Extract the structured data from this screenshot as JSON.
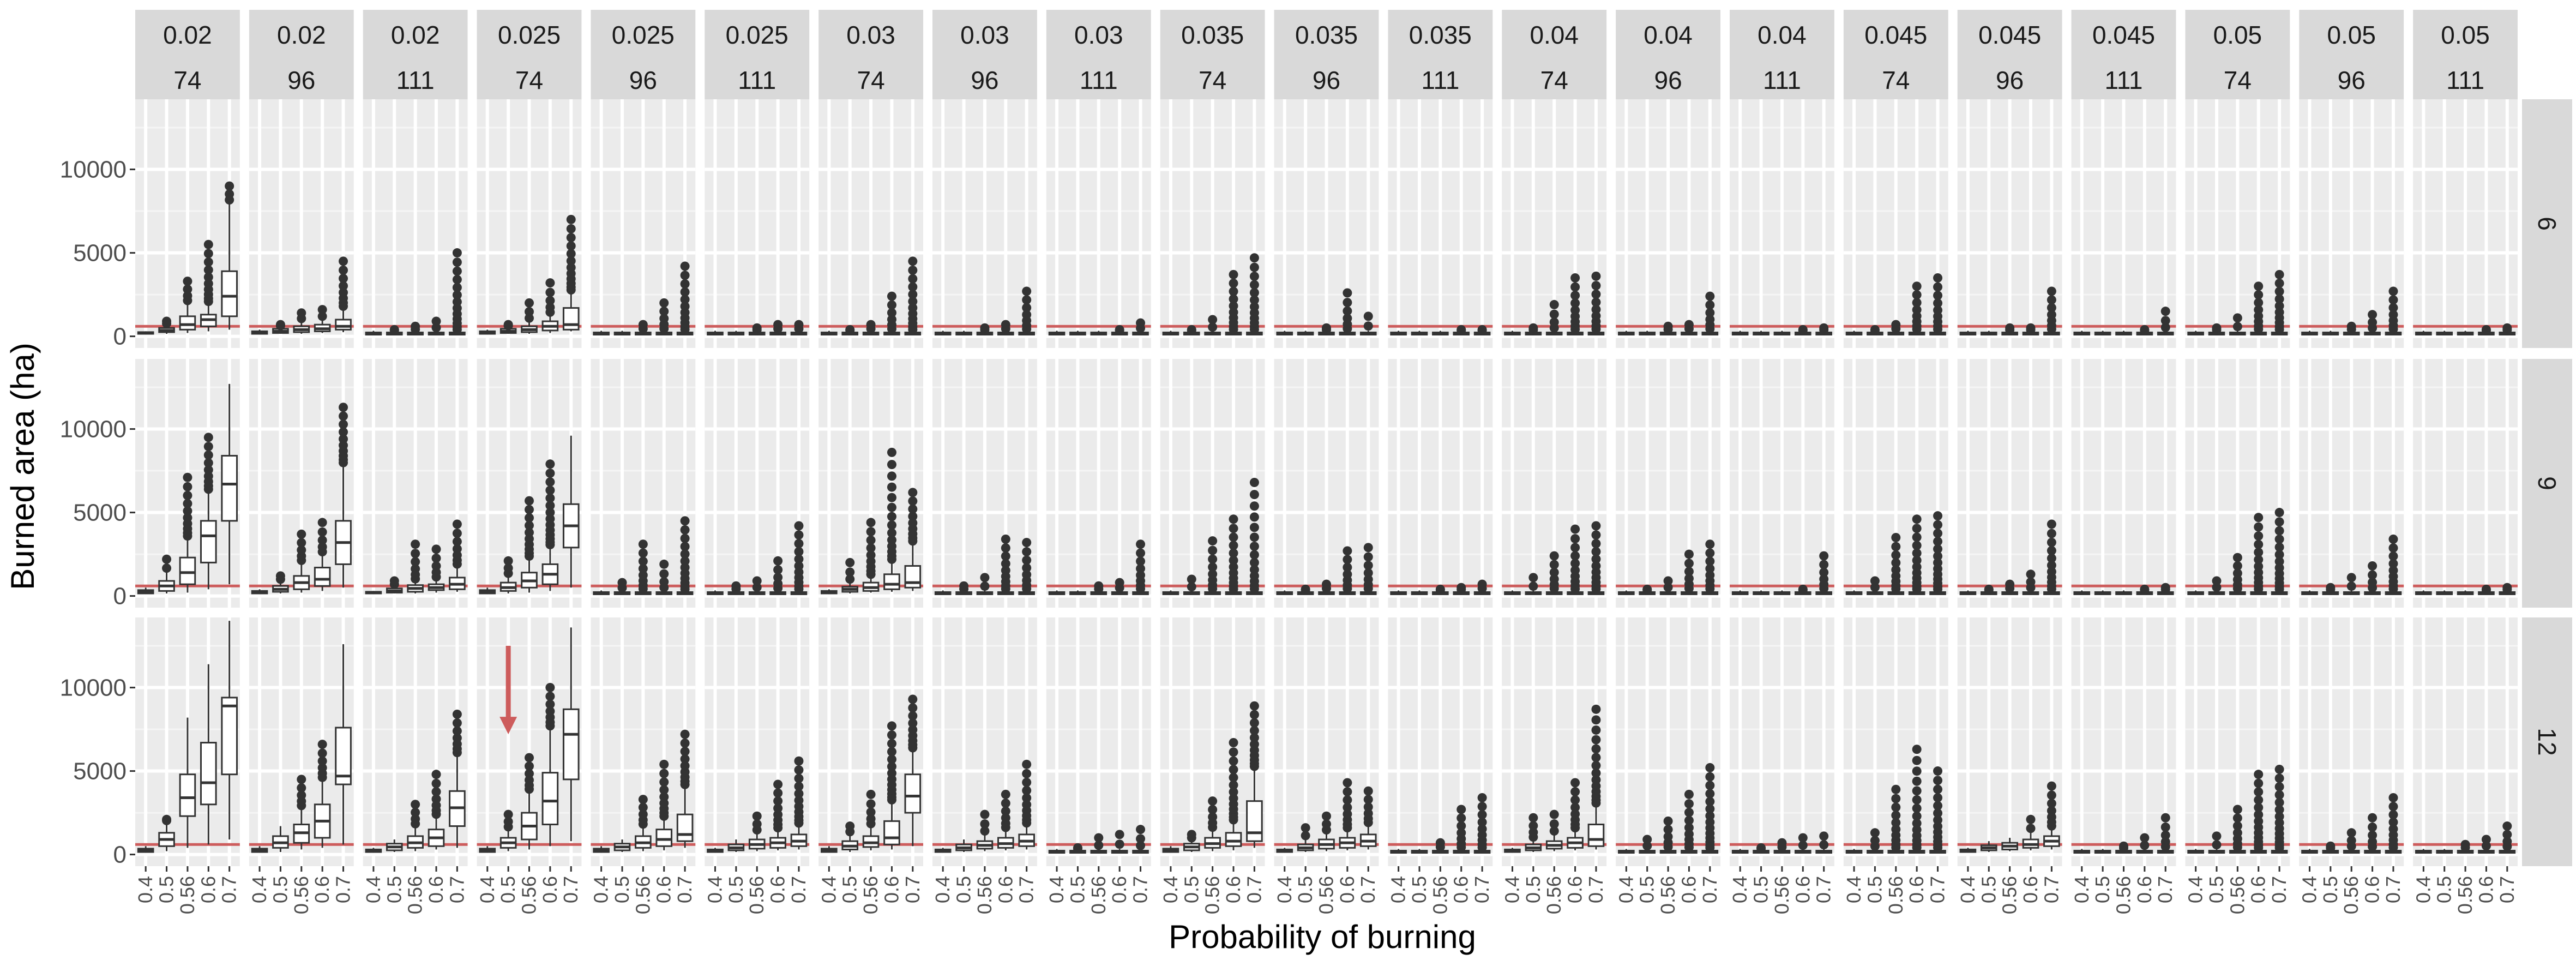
{
  "chart_data": {
    "type": "boxplot",
    "title": "",
    "xlabel": "Probability of burning",
    "ylabel": "Burned area (ha)",
    "x_categories": [
      "0.4",
      "0.5",
      "0.56",
      "0.6",
      "0.7"
    ],
    "y_ticks": [
      0,
      5000,
      10000
    ],
    "y_tick_labels": [
      "0",
      "5000",
      "10000"
    ],
    "ylim": [
      -700,
      14200
    ],
    "reference_line": 600,
    "reference_color": "#cd5c5c",
    "facet_cols": [
      {
        "top": "0.02",
        "bottom": "74"
      },
      {
        "top": "0.02",
        "bottom": "96"
      },
      {
        "top": "0.02",
        "bottom": "111"
      },
      {
        "top": "0.025",
        "bottom": "74"
      },
      {
        "top": "0.025",
        "bottom": "96"
      },
      {
        "top": "0.025",
        "bottom": "111"
      },
      {
        "top": "0.03",
        "bottom": "74"
      },
      {
        "top": "0.03",
        "bottom": "96"
      },
      {
        "top": "0.03",
        "bottom": "111"
      },
      {
        "top": "0.035",
        "bottom": "74"
      },
      {
        "top": "0.035",
        "bottom": "96"
      },
      {
        "top": "0.035",
        "bottom": "111"
      },
      {
        "top": "0.04",
        "bottom": "74"
      },
      {
        "top": "0.04",
        "bottom": "96"
      },
      {
        "top": "0.04",
        "bottom": "111"
      },
      {
        "top": "0.045",
        "bottom": "74"
      },
      {
        "top": "0.045",
        "bottom": "96"
      },
      {
        "top": "0.045",
        "bottom": "111"
      },
      {
        "top": "0.05",
        "bottom": "74"
      },
      {
        "top": "0.05",
        "bottom": "96"
      },
      {
        "top": "0.05",
        "bottom": "111"
      }
    ],
    "facet_rows": [
      "6",
      "9",
      "12"
    ],
    "max_values": [
      [
        [
          300,
          900,
          3300,
          5500,
          9000
        ],
        [
          400,
          700,
          1400,
          1600,
          4500
        ],
        [
          200,
          400,
          600,
          900,
          5000
        ],
        [
          300,
          700,
          2000,
          3200,
          7000
        ],
        [
          200,
          300,
          700,
          2000,
          4200
        ],
        [
          200,
          300,
          500,
          700,
          700
        ],
        [
          300,
          400,
          700,
          2400,
          4500
        ],
        [
          200,
          300,
          500,
          700,
          2700
        ],
        [
          100,
          200,
          300,
          400,
          800
        ],
        [
          200,
          400,
          1000,
          3700,
          4700
        ],
        [
          200,
          300,
          500,
          2600,
          1200
        ],
        [
          100,
          200,
          300,
          400,
          400
        ],
        [
          200,
          500,
          1900,
          3500,
          3600
        ],
        [
          200,
          300,
          600,
          700,
          2400
        ],
        [
          100,
          200,
          300,
          400,
          500
        ],
        [
          200,
          400,
          700,
          3000,
          3500
        ],
        [
          200,
          300,
          500,
          500,
          2700
        ],
        [
          100,
          200,
          300,
          400,
          1500
        ],
        [
          200,
          500,
          1100,
          3000,
          3700
        ],
        [
          200,
          300,
          600,
          1300,
          2700
        ],
        [
          100,
          200,
          300,
          400,
          500
        ]
      ],
      [
        [
          300,
          2200,
          7100,
          9500,
          12700
        ],
        [
          300,
          1200,
          3700,
          4400,
          11300
        ],
        [
          300,
          900,
          3100,
          2800,
          4300
        ],
        [
          300,
          2100,
          5700,
          7900,
          9600
        ],
        [
          300,
          800,
          3100,
          1900,
          4500
        ],
        [
          200,
          600,
          900,
          2100,
          4200
        ],
        [
          300,
          2000,
          4400,
          8600,
          6200
        ],
        [
          300,
          600,
          1100,
          3400,
          3200
        ],
        [
          200,
          300,
          600,
          800,
          3100
        ],
        [
          300,
          1000,
          3300,
          4600,
          6800
        ],
        [
          200,
          400,
          700,
          2700,
          2900
        ],
        [
          100,
          200,
          400,
          500,
          700
        ],
        [
          300,
          1100,
          2400,
          4000,
          4200
        ],
        [
          200,
          400,
          900,
          2500,
          3100
        ],
        [
          100,
          200,
          300,
          400,
          2400
        ],
        [
          300,
          900,
          3500,
          4600,
          4800
        ],
        [
          200,
          400,
          700,
          1300,
          4300
        ],
        [
          100,
          200,
          300,
          400,
          500
        ],
        [
          300,
          900,
          2300,
          4700,
          5000
        ],
        [
          200,
          500,
          1100,
          1800,
          3400
        ],
        [
          100,
          200,
          300,
          400,
          500
        ]
      ],
      [
        [
          300,
          2100,
          8200,
          11400,
          14000
        ],
        [
          300,
          1400,
          4500,
          6600,
          12600
        ],
        [
          300,
          900,
          3000,
          4800,
          8400
        ],
        [
          300,
          2400,
          5800,
          10000,
          13600
        ],
        [
          300,
          800,
          3300,
          5400,
          7200
        ],
        [
          300,
          900,
          2300,
          4200,
          5600
        ],
        [
          300,
          1700,
          3600,
          7700,
          9300
        ],
        [
          300,
          800,
          2400,
          3600,
          5400
        ],
        [
          200,
          400,
          1000,
          1200,
          1500
        ],
        [
          300,
          1200,
          3200,
          6700,
          8900
        ],
        [
          300,
          1600,
          2300,
          4300,
          3800
        ],
        [
          200,
          300,
          700,
          2700,
          3400
        ],
        [
          300,
          2200,
          2400,
          4300,
          8700
        ],
        [
          300,
          900,
          2000,
          3600,
          5200
        ],
        [
          200,
          400,
          700,
          1000,
          1100
        ],
        [
          300,
          1300,
          3900,
          6300,
          5000
        ],
        [
          200,
          500,
          900,
          2100,
          4100
        ],
        [
          200,
          300,
          500,
          1000,
          2200
        ],
        [
          300,
          1100,
          2700,
          4800,
          5100
        ],
        [
          200,
          500,
          1300,
          2200,
          3400
        ],
        [
          200,
          300,
          600,
          900,
          1700
        ]
      ]
    ],
    "boxes": {
      "0_0": [
        [
          100,
          150,
          200,
          250,
          300
        ],
        [
          150,
          250,
          350,
          500,
          700
        ],
        [
          200,
          400,
          700,
          1200,
          2000
        ],
        [
          300,
          600,
          1000,
          1300,
          2000
        ],
        [
          400,
          1200,
          2400,
          3900,
          8000
        ]
      ],
      "0_1": [
        [
          100,
          150,
          200,
          300,
          400
        ],
        [
          150,
          200,
          300,
          450,
          600
        ],
        [
          150,
          250,
          400,
          600,
          900
        ],
        [
          200,
          300,
          450,
          700,
          1000
        ],
        [
          250,
          400,
          600,
          1000,
          1700
        ]
      ],
      "0_3": [
        [
          100,
          150,
          200,
          300,
          400
        ],
        [
          150,
          200,
          300,
          450,
          600
        ],
        [
          150,
          250,
          400,
          600,
          900
        ],
        [
          200,
          350,
          600,
          900,
          1300
        ],
        [
          300,
          400,
          700,
          1700,
          2700
        ]
      ],
      "1_0": [
        [
          100,
          150,
          250,
          350,
          500
        ],
        [
          150,
          300,
          600,
          900,
          1400
        ],
        [
          200,
          700,
          1400,
          2300,
          3500
        ],
        [
          400,
          2000,
          3600,
          4500,
          6300
        ],
        [
          700,
          4500,
          6700,
          8400,
          12700
        ]
      ],
      "1_1": [
        [
          100,
          150,
          200,
          300,
          400
        ],
        [
          150,
          250,
          400,
          600,
          900
        ],
        [
          200,
          400,
          800,
          1200,
          2000
        ],
        [
          300,
          600,
          1000,
          1700,
          2500
        ],
        [
          500,
          1900,
          3200,
          4500,
          7900
        ]
      ],
      "1_2": [
        [
          100,
          150,
          200,
          250,
          300
        ],
        [
          150,
          200,
          300,
          450,
          600
        ],
        [
          150,
          250,
          450,
          650,
          900
        ],
        [
          200,
          350,
          500,
          700,
          1000
        ],
        [
          250,
          400,
          700,
          1100,
          1800
        ]
      ],
      "1_3": [
        [
          100,
          150,
          250,
          350,
          500
        ],
        [
          150,
          300,
          500,
          800,
          1200
        ],
        [
          200,
          500,
          900,
          1400,
          2300
        ],
        [
          300,
          700,
          1300,
          1900,
          3000
        ],
        [
          500,
          2900,
          4200,
          5500,
          9600
        ]
      ],
      "1_6": [
        [
          100,
          150,
          200,
          300,
          400
        ],
        [
          150,
          250,
          400,
          550,
          800
        ],
        [
          200,
          300,
          500,
          800,
          1200
        ],
        [
          250,
          400,
          700,
          1300,
          2100
        ],
        [
          300,
          500,
          800,
          1800,
          3200
        ]
      ],
      "2_0": [
        [
          100,
          150,
          250,
          350,
          500
        ],
        [
          200,
          500,
          900,
          1300,
          2000
        ],
        [
          400,
          2300,
          3400,
          4800,
          8200
        ],
        [
          600,
          3000,
          4300,
          6700,
          11400
        ],
        [
          900,
          4800,
          8900,
          9400,
          14000
        ]
      ],
      "2_1": [
        [
          100,
          150,
          250,
          350,
          500
        ],
        [
          150,
          400,
          700,
          1100,
          1700
        ],
        [
          300,
          700,
          1300,
          1800,
          2800
        ],
        [
          400,
          1000,
          2000,
          3000,
          4500
        ],
        [
          600,
          4200,
          4700,
          7600,
          12600
        ]
      ],
      "2_2": [
        [
          100,
          150,
          200,
          300,
          400
        ],
        [
          150,
          250,
          450,
          650,
          900
        ],
        [
          200,
          400,
          700,
          1100,
          1700
        ],
        [
          300,
          500,
          1000,
          1500,
          2300
        ],
        [
          400,
          1700,
          2800,
          3800,
          6000
        ]
      ],
      "2_3": [
        [
          100,
          150,
          250,
          350,
          500
        ],
        [
          200,
          400,
          700,
          1000,
          1500
        ],
        [
          300,
          900,
          1700,
          2500,
          3800
        ],
        [
          500,
          1800,
          3200,
          4900,
          7600
        ],
        [
          800,
          4500,
          7200,
          8700,
          13600
        ]
      ],
      "2_4": [
        [
          100,
          150,
          250,
          350,
          500
        ],
        [
          150,
          250,
          450,
          650,
          900
        ],
        [
          200,
          400,
          700,
          1100,
          1700
        ],
        [
          250,
          500,
          900,
          1500,
          2200
        ],
        [
          400,
          800,
          1200,
          2400,
          4100
        ]
      ],
      "2_5": [
        [
          100,
          150,
          200,
          300,
          400
        ],
        [
          150,
          250,
          400,
          600,
          900
        ],
        [
          200,
          350,
          600,
          900,
          1300
        ],
        [
          250,
          400,
          700,
          1000,
          1500
        ],
        [
          300,
          500,
          800,
          1200,
          1800
        ]
      ],
      "2_6": [
        [
          100,
          150,
          250,
          350,
          500
        ],
        [
          150,
          300,
          500,
          800,
          1200
        ],
        [
          250,
          450,
          700,
          1100,
          1700
        ],
        [
          300,
          600,
          1000,
          2000,
          3200
        ],
        [
          500,
          2500,
          3500,
          4800,
          6300
        ]
      ],
      "2_7": [
        [
          100,
          150,
          200,
          300,
          400
        ],
        [
          150,
          250,
          400,
          600,
          900
        ],
        [
          200,
          350,
          550,
          800,
          1200
        ],
        [
          250,
          400,
          650,
          1000,
          1500
        ],
        [
          300,
          500,
          800,
          1200,
          1800
        ]
      ],
      "2_9": [
        [
          100,
          150,
          250,
          350,
          500
        ],
        [
          150,
          250,
          450,
          650,
          900
        ],
        [
          200,
          400,
          650,
          1000,
          1500
        ],
        [
          250,
          500,
          800,
          1300,
          2000
        ],
        [
          400,
          800,
          1300,
          3200,
          5200
        ]
      ],
      "2_10": [
        [
          100,
          150,
          200,
          300,
          400
        ],
        [
          150,
          250,
          400,
          600,
          900
        ],
        [
          200,
          350,
          600,
          900,
          1300
        ],
        [
          250,
          400,
          700,
          1000,
          1500
        ],
        [
          300,
          500,
          800,
          1200,
          1800
        ]
      ],
      "2_12": [
        [
          100,
          150,
          200,
          300,
          400
        ],
        [
          150,
          250,
          400,
          600,
          900
        ],
        [
          200,
          350,
          550,
          800,
          1200
        ],
        [
          250,
          400,
          700,
          1000,
          1500
        ],
        [
          300,
          500,
          900,
          1800,
          3000
        ]
      ],
      "2_16": [
        [
          100,
          150,
          200,
          300,
          400
        ],
        [
          150,
          250,
          400,
          550,
          800
        ],
        [
          200,
          300,
          500,
          700,
          1000
        ],
        [
          250,
          400,
          600,
          900,
          1300
        ],
        [
          300,
          500,
          800,
          1100,
          1600
        ]
      ]
    },
    "annotation": {
      "type": "arrow",
      "row": 2,
      "col": 3,
      "category": "0.5",
      "from_value": 12500,
      "to_value": 7400,
      "color": "#cd5c5c"
    }
  }
}
